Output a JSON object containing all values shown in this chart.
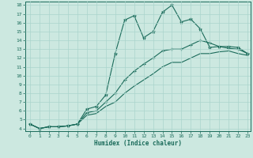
{
  "xlabel": "Humidex (Indice chaleur)",
  "xlim": [
    -0.5,
    23.3
  ],
  "ylim": [
    3.7,
    18.4
  ],
  "xticks": [
    0,
    1,
    2,
    3,
    4,
    5,
    6,
    7,
    8,
    9,
    10,
    11,
    12,
    13,
    14,
    15,
    16,
    17,
    18,
    19,
    20,
    21,
    22,
    23
  ],
  "yticks": [
    4,
    5,
    6,
    7,
    8,
    9,
    10,
    11,
    12,
    13,
    14,
    15,
    16,
    17,
    18
  ],
  "bg_color": "#cce8e0",
  "line_color": "#1a6b5a",
  "grid_color": "#aad4cc",
  "line1_x": [
    0,
    1,
    2,
    3,
    4,
    5,
    6,
    7,
    8,
    9,
    10,
    11,
    12,
    13,
    14,
    15,
    16,
    17,
    18,
    19,
    20,
    21,
    22,
    23
  ],
  "line1_y": [
    4.5,
    4.0,
    4.2,
    4.2,
    4.3,
    4.5,
    6.2,
    6.5,
    7.8,
    12.5,
    16.3,
    16.8,
    14.3,
    15.0,
    17.2,
    18.0,
    16.1,
    16.4,
    15.3,
    13.2,
    13.3,
    13.3,
    13.2,
    12.5
  ],
  "line2_x": [
    0,
    1,
    2,
    3,
    4,
    5,
    6,
    7,
    8,
    9,
    10,
    11,
    12,
    13,
    14,
    15,
    16,
    17,
    18,
    19,
    20,
    21,
    22,
    23
  ],
  "line2_y": [
    4.5,
    4.0,
    4.2,
    4.2,
    4.3,
    4.5,
    5.8,
    6.0,
    7.0,
    8.0,
    9.5,
    10.5,
    11.3,
    12.0,
    12.8,
    13.0,
    13.0,
    13.5,
    14.0,
    13.7,
    13.3,
    13.1,
    13.0,
    12.5
  ],
  "line3_x": [
    0,
    1,
    2,
    3,
    4,
    5,
    6,
    7,
    8,
    9,
    10,
    11,
    12,
    13,
    14,
    15,
    16,
    17,
    18,
    19,
    20,
    21,
    22,
    23
  ],
  "line3_y": [
    4.5,
    4.0,
    4.2,
    4.2,
    4.3,
    4.5,
    5.5,
    5.7,
    6.5,
    7.0,
    8.0,
    8.8,
    9.5,
    10.2,
    11.0,
    11.5,
    11.5,
    12.0,
    12.5,
    12.5,
    12.7,
    12.8,
    12.5,
    12.3
  ]
}
